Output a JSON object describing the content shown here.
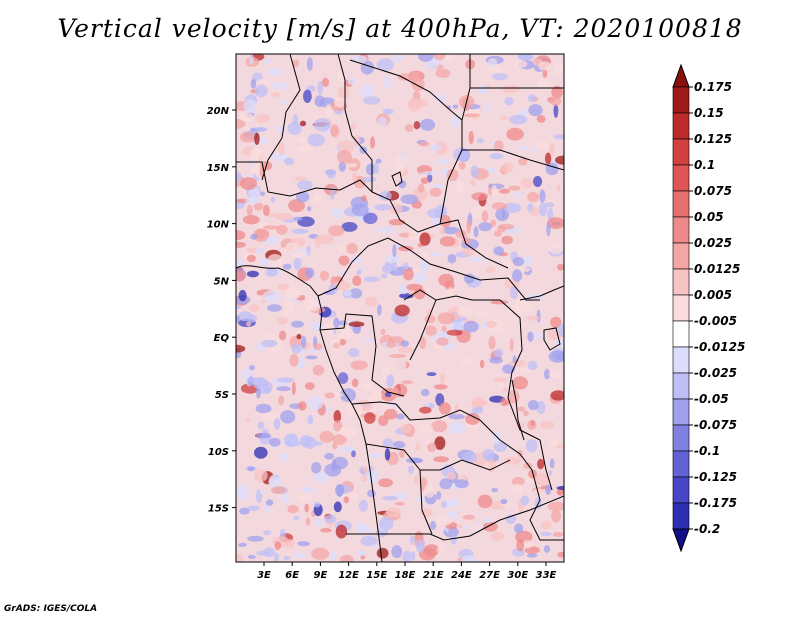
{
  "title": "Vertical velocity [m/s] at 400hPa, VT: 2020100818",
  "credit": "GrADS: IGES/COLA",
  "lon_ticks": [
    "3E",
    "6E",
    "9E",
    "12E",
    "15E",
    "18E",
    "21E",
    "24E",
    "27E",
    "30E",
    "33E"
  ],
  "lat_ticks": [
    "20N",
    "15N",
    "10N",
    "5N",
    "EQ",
    "5S",
    "10S",
    "15S"
  ],
  "colorbar": {
    "labels": [
      "0.175",
      "0.15",
      "0.125",
      "0.1",
      "0.075",
      "0.05",
      "0.025",
      "0.0125",
      "0.005",
      "-0.005",
      "-0.0125",
      "-0.025",
      "-0.05",
      "-0.075",
      "-0.1",
      "-0.125",
      "-0.175",
      "-0.2"
    ],
    "colors": [
      "#a11a1a",
      "#bd2a2a",
      "#d24040",
      "#e05656",
      "#e86f6f",
      "#ef8a8a",
      "#f4a6a6",
      "#f8c3c3",
      "#fbdcdc",
      "#ffffff",
      "#dcdcfb",
      "#bfbff7",
      "#a0a0ee",
      "#8080e2",
      "#6262d6",
      "#4646c6",
      "#2e2eb4",
      "#1818a0"
    ],
    "top_arrow_color": "#8a0f0f",
    "bottom_arrow_color": "#10108a"
  },
  "map_colors": {
    "positive": "#f4a6a6",
    "negative": "#a8a8ee",
    "strong_positive": "#b82020",
    "strong_negative": "#3a3ab8",
    "background": "#f3d9de"
  }
}
